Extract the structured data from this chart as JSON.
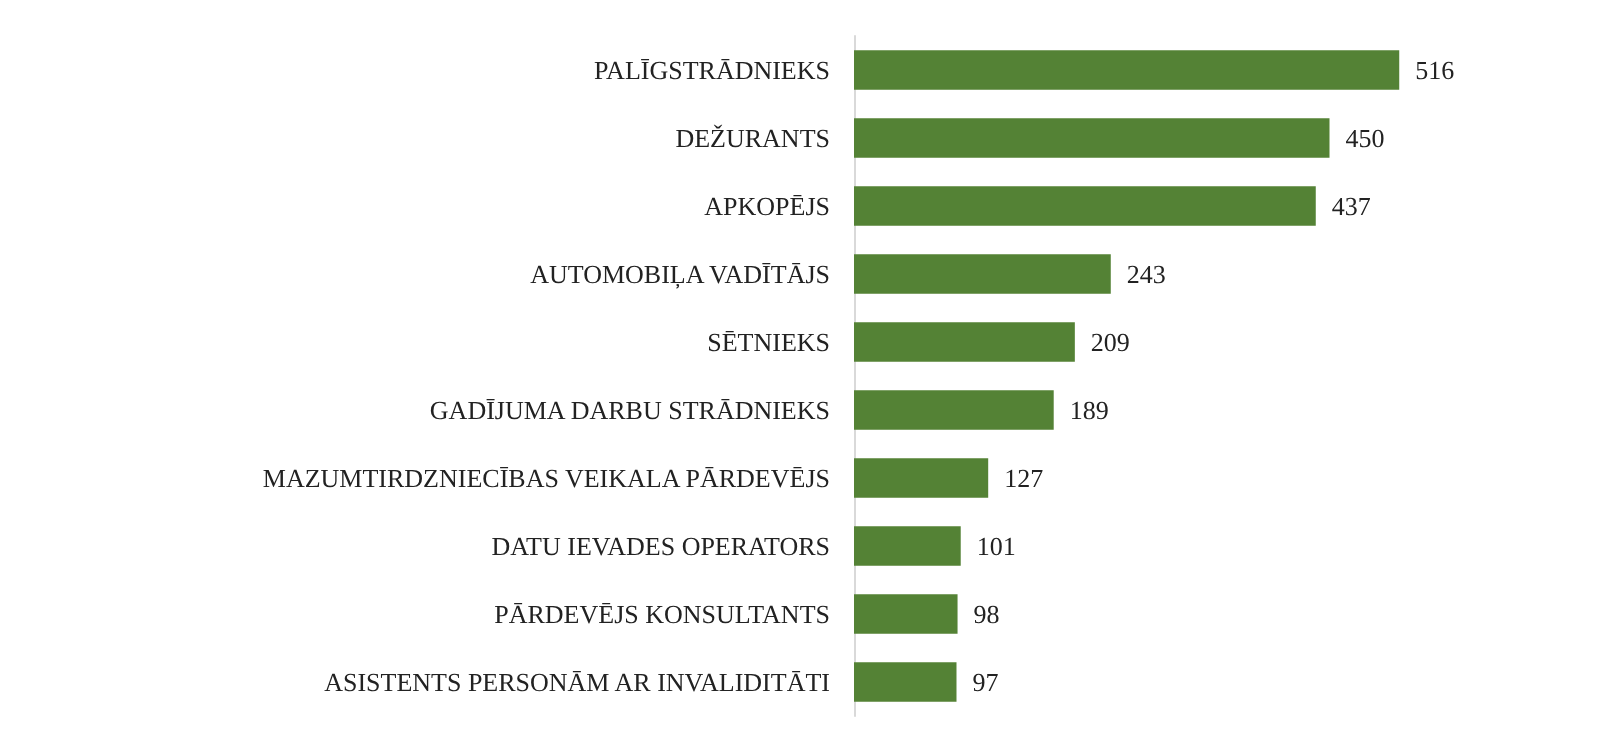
{
  "chart_data": {
    "type": "bar",
    "orientation": "horizontal",
    "data_labels": true,
    "categories": [
      "PALĪGSTRĀDNIEKS",
      "DEŽURANTS",
      "APKOPĒJS",
      "AUTOMOBIĻA VADĪTĀJS",
      "SĒTNIEKS",
      "GADĪJUMA DARBU STRĀDNIEKS",
      "MAZUMTIRDZNIECĪBAS VEIKALA PĀRDEVĒJS",
      "DATU IEVADES OPERATORS",
      "PĀRDEVĒJS KONSULTANTS",
      "ASISTENTS PERSONĀM AR INVALIDITĀTI"
    ],
    "values": [
      516,
      450,
      437,
      243,
      209,
      189,
      127,
      101,
      98,
      97
    ],
    "color": "#548235"
  }
}
